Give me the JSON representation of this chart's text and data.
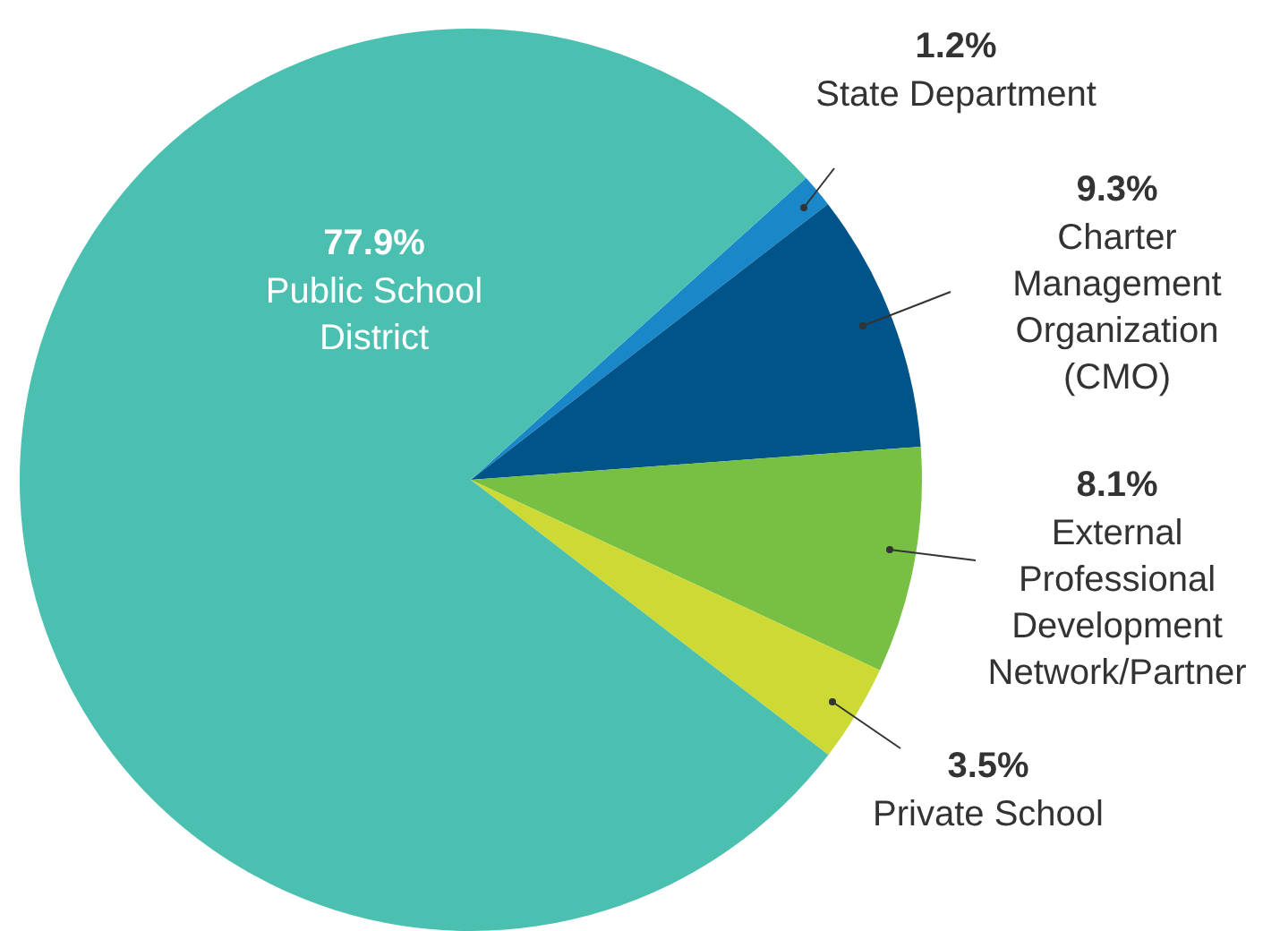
{
  "chart_data": {
    "type": "pie",
    "categories": [
      "State Department",
      "Charter Management Organization (CMO)",
      "External Professional Development Network/Partner",
      "Private School",
      "Public School District"
    ],
    "values": [
      1.2,
      9.3,
      8.1,
      3.5,
      77.9
    ],
    "colors": [
      "#1a87c9",
      "#00548a",
      "#78c043",
      "#cdd935",
      "#4bc0b0"
    ],
    "value_labels": [
      "1.2%",
      "9.3%",
      "8.1%",
      "3.5%",
      "77.9%"
    ],
    "legend": false
  }
}
